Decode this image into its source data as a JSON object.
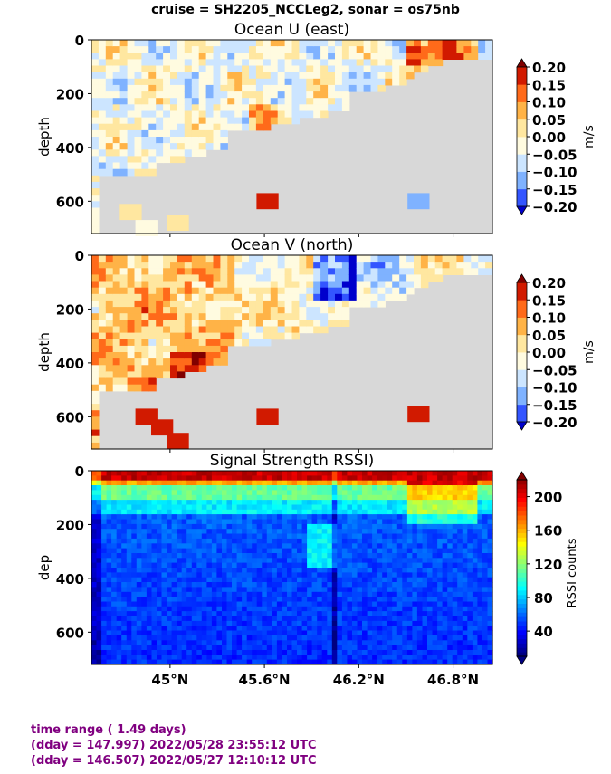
{
  "suptitle": "cruise = SH2205_NCCLeg2,  sonar = os75nb",
  "footer": {
    "line1": "time range ( 1.49 days)",
    "line2": "(dday = 147.997) 2022/05/28 23:55:12 UTC",
    "line3": "(dday = 146.507) 2022/05/27 12:10:12 UTC"
  },
  "chart_data": [
    {
      "type": "heatmap",
      "title": "Ocean U (east)",
      "ylabel": "depth",
      "xlabel": "",
      "x_ticks": [
        "45°N",
        "45.6°N",
        "46.2°N",
        "46.8°N"
      ],
      "x_tick_values": [
        45.0,
        45.6,
        46.2,
        46.8
      ],
      "xlim": [
        44.5,
        47.05
      ],
      "y_ticks": [
        "0",
        "200",
        "400",
        "600"
      ],
      "y_tick_values": [
        0,
        200,
        400,
        600
      ],
      "ylim": [
        720,
        0
      ],
      "colorbar": {
        "label": "m/s",
        "ticks": [
          "0.20",
          "0.15",
          "0.10",
          "0.05",
          "0.00",
          "−0.05",
          "−0.10",
          "−0.15",
          "−0.20"
        ],
        "levels": [
          -0.2,
          -0.15,
          -0.1,
          -0.05,
          0.0,
          0.05,
          0.1,
          0.15,
          0.2
        ],
        "colors": [
          "#0000cc",
          "#3355ff",
          "#7fb2ff",
          "#cce5ff",
          "#fffbe0",
          "#ffe7a0",
          "#ffb347",
          "#ff6a1a",
          "#d11a00",
          "#800000"
        ]
      }
    },
    {
      "type": "heatmap",
      "title": "Ocean V (north)",
      "ylabel": "depth",
      "xlabel": "",
      "x_ticks": [
        "45°N",
        "45.6°N",
        "46.2°N",
        "46.8°N"
      ],
      "x_tick_values": [
        45.0,
        45.6,
        46.2,
        46.8
      ],
      "xlim": [
        44.5,
        47.05
      ],
      "y_ticks": [
        "0",
        "200",
        "400",
        "600"
      ],
      "y_tick_values": [
        0,
        200,
        400,
        600
      ],
      "ylim": [
        720,
        0
      ],
      "colorbar": {
        "label": "m/s",
        "ticks": [
          "0.20",
          "0.15",
          "0.10",
          "0.05",
          "0.00",
          "−0.05",
          "−0.10",
          "−0.15",
          "−0.20"
        ],
        "levels": [
          -0.2,
          -0.15,
          -0.1,
          -0.05,
          0.0,
          0.05,
          0.1,
          0.15,
          0.2
        ],
        "colors": [
          "#0000cc",
          "#3355ff",
          "#7fb2ff",
          "#cce5ff",
          "#fffbe0",
          "#ffe7a0",
          "#ffb347",
          "#ff6a1a",
          "#d11a00",
          "#800000"
        ]
      }
    },
    {
      "type": "heatmap",
      "title": "Signal Strength RSSI)",
      "ylabel": "dep",
      "xlabel": "",
      "x_ticks": [
        "45°N",
        "45.6°N",
        "46.2°N",
        "46.8°N"
      ],
      "x_tick_values": [
        45.0,
        45.6,
        46.2,
        46.8
      ],
      "xlim": [
        44.5,
        47.05
      ],
      "y_ticks": [
        "0",
        "200",
        "400",
        "600"
      ],
      "y_tick_values": [
        0,
        200,
        400,
        600
      ],
      "ylim": [
        720,
        0
      ],
      "colorbar": {
        "label": "RSSI counts",
        "ticks": [
          "200",
          "160",
          "120",
          "80",
          "40"
        ],
        "tick_values": [
          200,
          160,
          120,
          80,
          40
        ],
        "range": [
          10,
          220
        ],
        "colormap": "jet"
      }
    }
  ]
}
